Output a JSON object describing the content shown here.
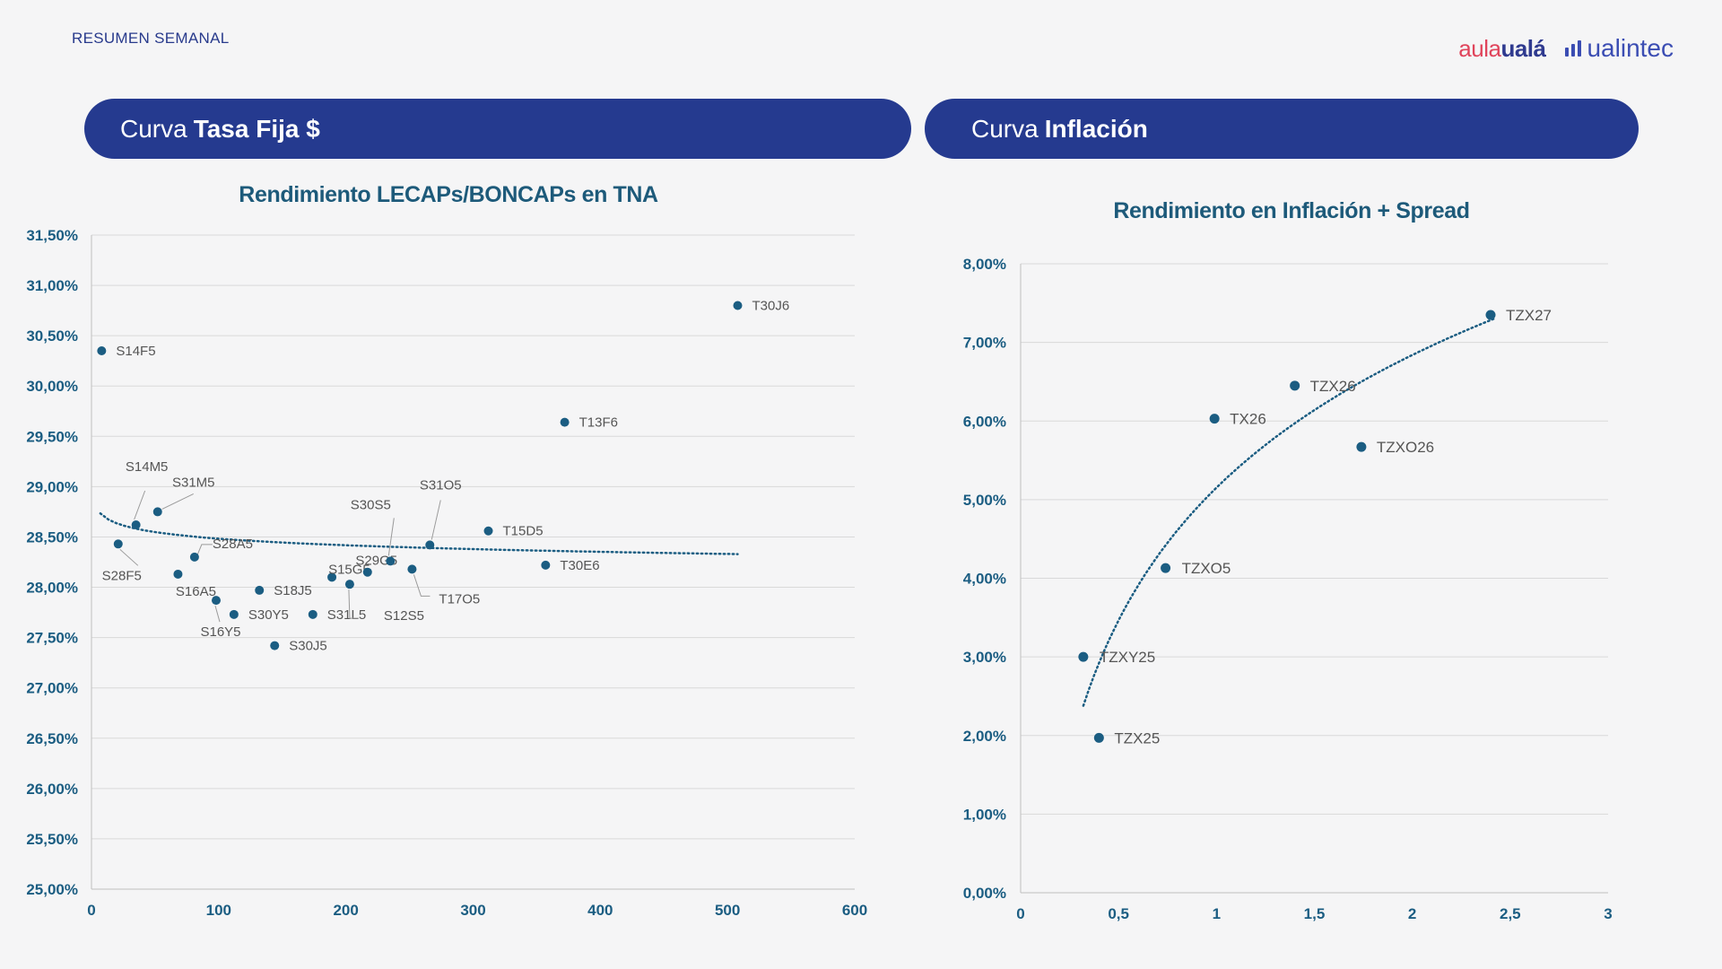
{
  "header": {
    "label": "RESUMEN SEMANAL"
  },
  "logos": {
    "aula_part1": "aula",
    "aula_part2": "ualá",
    "ualintec": "ualintec"
  },
  "sections": {
    "left": {
      "prefix": "Curva",
      "bold": "Tasa Fija $"
    },
    "right": {
      "prefix": "Curva",
      "bold": "Inflación"
    }
  },
  "colors": {
    "navy": "#253a8f",
    "point": "#1b5d82",
    "tick": "#1b5d82",
    "trend": "#1b5d82",
    "grid": "#d9d9d9"
  },
  "chart_data": [
    {
      "type": "scatter",
      "title": "Rendimiento LECAPs/BONCAPs en TNA",
      "xlabel": "",
      "ylabel": "",
      "xlim": [
        0,
        600
      ],
      "ylim": [
        25,
        31.5
      ],
      "xticks": [
        0,
        100,
        200,
        300,
        400,
        500,
        600
      ],
      "xtick_labels": [
        "0",
        "100",
        "200",
        "300",
        "400",
        "500",
        "600"
      ],
      "yticks": [
        25,
        25.5,
        26,
        26.5,
        27,
        27.5,
        28,
        28.5,
        29,
        29.5,
        30,
        30.5,
        31,
        31.5
      ],
      "ytick_labels": [
        "25,00%",
        "25,50%",
        "26,00%",
        "26,50%",
        "27,00%",
        "27,50%",
        "28,00%",
        "28,50%",
        "29,00%",
        "29,50%",
        "30,00%",
        "30,50%",
        "31,00%",
        "31,50%"
      ],
      "trendline": {
        "style": "dotted",
        "kind": "logarithmic",
        "x_range": [
          7,
          508
        ]
      },
      "points": [
        {
          "label": "S14F5",
          "x": 8,
          "y": 30.35
        },
        {
          "label": "S28F5",
          "x": 21,
          "y": 28.43
        },
        {
          "label": "S14M5",
          "x": 35,
          "y": 28.62
        },
        {
          "label": "S31M5",
          "x": 52,
          "y": 28.75
        },
        {
          "label": "S16A5",
          "x": 68,
          "y": 28.13
        },
        {
          "label": "S28A5",
          "x": 81,
          "y": 28.3
        },
        {
          "label": "S16Y5",
          "x": 98,
          "y": 27.87
        },
        {
          "label": "S30Y5",
          "x": 112,
          "y": 27.73
        },
        {
          "label": "S18J5",
          "x": 132,
          "y": 27.97
        },
        {
          "label": "S30J5",
          "x": 144,
          "y": 27.42
        },
        {
          "label": "S31L5",
          "x": 174,
          "y": 27.73
        },
        {
          "label": "S15G5",
          "x": 189,
          "y": 28.1
        },
        {
          "label": "S12S5",
          "x": 203,
          "y": 28.03
        },
        {
          "label": "S29G5",
          "x": 217,
          "y": 28.15
        },
        {
          "label": "S30S5",
          "x": 235,
          "y": 28.26
        },
        {
          "label": "T17O5",
          "x": 252,
          "y": 28.18
        },
        {
          "label": "S31O5",
          "x": 266,
          "y": 28.42
        },
        {
          "label": "T15D5",
          "x": 312,
          "y": 28.56
        },
        {
          "label": "T30E6",
          "x": 357,
          "y": 28.22
        },
        {
          "label": "T13F6",
          "x": 372,
          "y": 29.64
        },
        {
          "label": "T30J6",
          "x": 508,
          "y": 30.8
        }
      ]
    },
    {
      "type": "scatter",
      "title": "Rendimiento en Inflación + Spread",
      "xlabel": "",
      "ylabel": "",
      "xlim": [
        0,
        3
      ],
      "ylim": [
        0,
        8
      ],
      "xticks": [
        0,
        0.5,
        1,
        1.5,
        2,
        2.5,
        3
      ],
      "xtick_labels": [
        "0",
        "0,5",
        "1",
        "1,5",
        "2",
        "2,5",
        "3"
      ],
      "yticks": [
        0,
        1,
        2,
        3,
        4,
        5,
        6,
        7,
        8
      ],
      "ytick_labels": [
        "0,00%",
        "1,00%",
        "2,00%",
        "3,00%",
        "4,00%",
        "5,00%",
        "6,00%",
        "7,00%",
        "8,00%"
      ],
      "trendline": {
        "style": "dotted",
        "kind": "logarithmic",
        "x_range": [
          0.32,
          2.42
        ]
      },
      "points": [
        {
          "label": "TZXY25",
          "x": 0.32,
          "y": 3.0
        },
        {
          "label": "TZX25",
          "x": 0.4,
          "y": 1.97
        },
        {
          "label": "TZXO5",
          "x": 0.74,
          "y": 4.13
        },
        {
          "label": "TX26",
          "x": 0.99,
          "y": 6.03
        },
        {
          "label": "TZX26",
          "x": 1.4,
          "y": 6.45
        },
        {
          "label": "TZXO26",
          "x": 1.74,
          "y": 5.67
        },
        {
          "label": "TZX27",
          "x": 2.4,
          "y": 7.35
        }
      ]
    }
  ]
}
